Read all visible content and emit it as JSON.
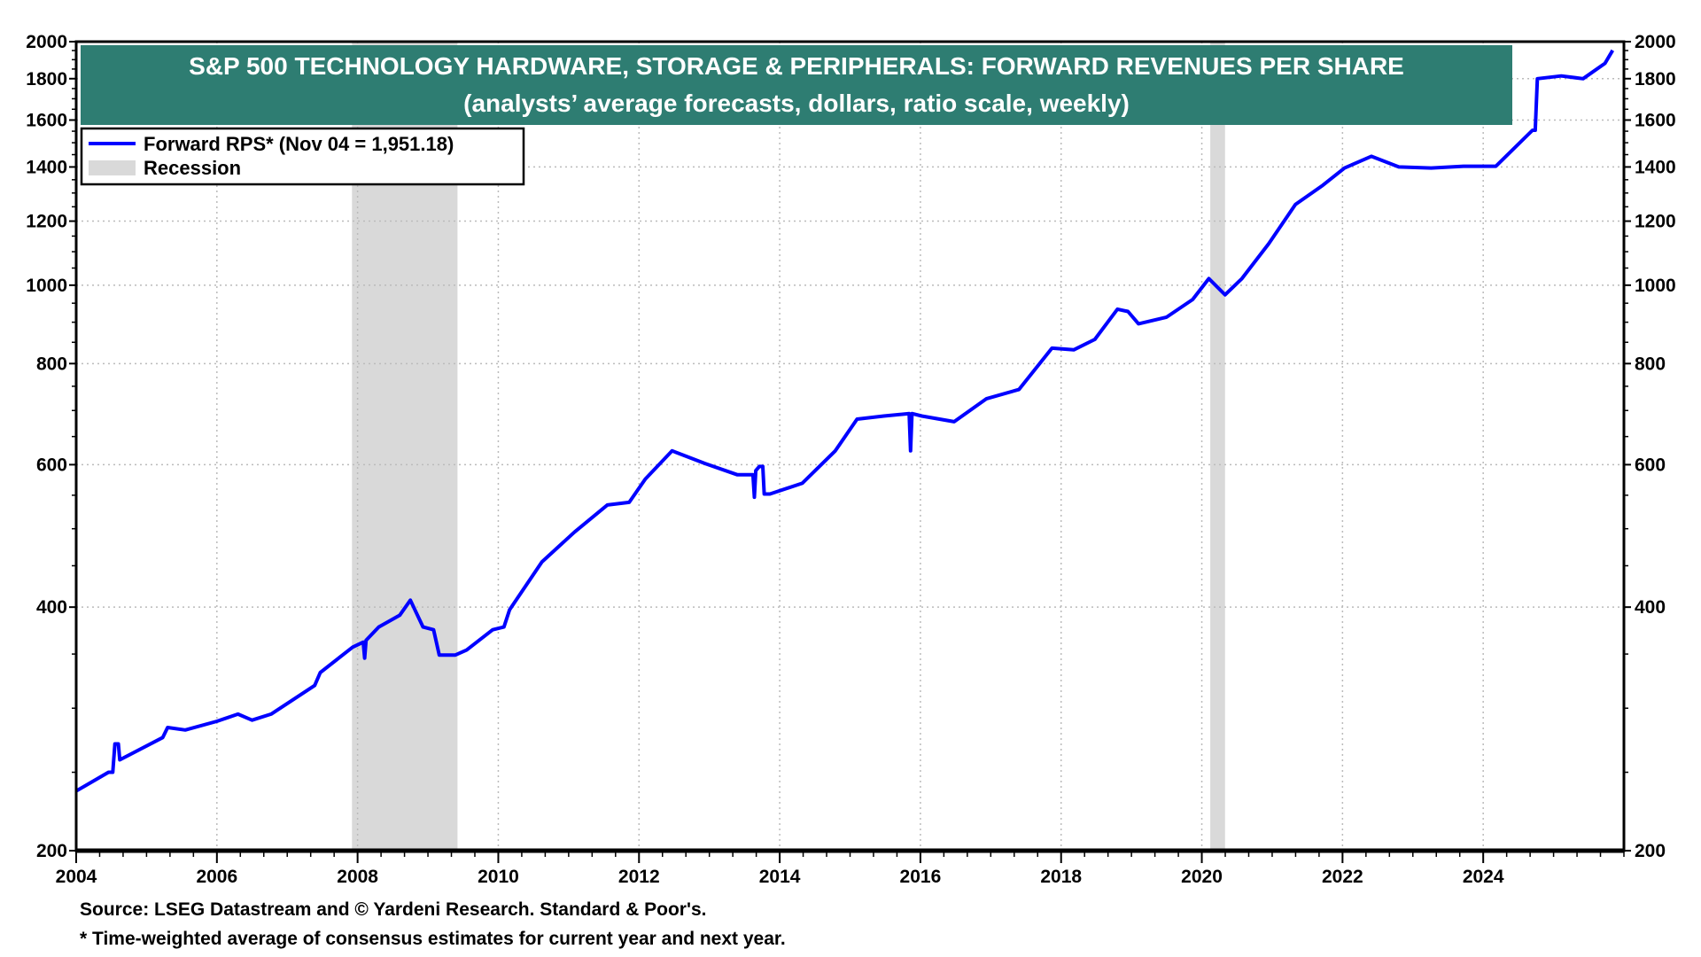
{
  "chart_data": {
    "type": "line",
    "title": "S&P 500 TECHNOLOGY HARDWARE, STORAGE & PERIPHERALS: FORWARD REVENUES PER SHARE",
    "subtitle": "(analysts’ average forecasts, dollars, ratio scale, weekly)",
    "xlabel": "",
    "ylabel": "",
    "xlim": [
      2004,
      2026
    ],
    "ylim": [
      200,
      2000
    ],
    "yscale": "log",
    "grid": true,
    "legend_position": "top-left",
    "x_ticks": [
      "2004",
      "2006",
      "2008",
      "2010",
      "2012",
      "2014",
      "2016",
      "2018",
      "2020",
      "2022",
      "2024"
    ],
    "y_ticks": [
      200,
      400,
      600,
      800,
      1000,
      1200,
      1400,
      1600,
      1800,
      2000
    ],
    "legend": [
      {
        "label": "Forward RPS* (Nov 04 = 1,951.18)",
        "color": "#0000ff",
        "kind": "line"
      },
      {
        "label": "Recession",
        "color": "#d9d9d9",
        "kind": "box"
      }
    ],
    "recessions": [
      [
        2007.92,
        2009.42
      ],
      [
        2020.12,
        2020.33
      ]
    ],
    "series": [
      {
        "name": "Forward RPS",
        "color": "#0000ff",
        "points": [
          [
            2004.0,
            237
          ],
          [
            2004.46,
            250
          ],
          [
            2004.52,
            250
          ],
          [
            2004.55,
            271
          ],
          [
            2004.6,
            271
          ],
          [
            2004.62,
            259
          ],
          [
            2005.23,
            276
          ],
          [
            2005.3,
            284
          ],
          [
            2005.55,
            282
          ],
          [
            2006.0,
            289
          ],
          [
            2006.3,
            295
          ],
          [
            2006.5,
            290
          ],
          [
            2006.77,
            295
          ],
          [
            2007.39,
            320
          ],
          [
            2007.47,
            332
          ],
          [
            2007.93,
            357
          ],
          [
            2008.08,
            362
          ],
          [
            2008.1,
            346
          ],
          [
            2008.12,
            364
          ],
          [
            2008.3,
            378
          ],
          [
            2008.6,
            391
          ],
          [
            2008.75,
            408
          ],
          [
            2008.93,
            378
          ],
          [
            2009.08,
            375
          ],
          [
            2009.16,
            349
          ],
          [
            2009.39,
            349
          ],
          [
            2009.55,
            354
          ],
          [
            2009.92,
            375
          ],
          [
            2010.08,
            378
          ],
          [
            2010.16,
            397
          ],
          [
            2010.62,
            455
          ],
          [
            2011.08,
            495
          ],
          [
            2011.55,
            535
          ],
          [
            2011.86,
            539
          ],
          [
            2012.09,
            576
          ],
          [
            2012.47,
            624
          ],
          [
            2012.94,
            602
          ],
          [
            2013.4,
            583
          ],
          [
            2013.62,
            583
          ],
          [
            2013.64,
            547
          ],
          [
            2013.66,
            590
          ],
          [
            2013.71,
            597
          ],
          [
            2013.76,
            597
          ],
          [
            2013.78,
            552
          ],
          [
            2013.86,
            552
          ],
          [
            2014.32,
            569
          ],
          [
            2014.79,
            624
          ],
          [
            2015.1,
            683
          ],
          [
            2015.48,
            689
          ],
          [
            2015.84,
            694
          ],
          [
            2015.86,
            624
          ],
          [
            2015.88,
            694
          ],
          [
            2016.02,
            689
          ],
          [
            2016.48,
            678
          ],
          [
            2016.94,
            724
          ],
          [
            2017.4,
            743
          ],
          [
            2017.87,
            836
          ],
          [
            2018.18,
            832
          ],
          [
            2018.48,
            857
          ],
          [
            2018.8,
            934
          ],
          [
            2018.95,
            928
          ],
          [
            2019.1,
            896
          ],
          [
            2019.5,
            913
          ],
          [
            2019.87,
            960
          ],
          [
            2020.1,
            1019
          ],
          [
            2020.33,
            973
          ],
          [
            2020.57,
            1019
          ],
          [
            2020.95,
            1125
          ],
          [
            2021.33,
            1258
          ],
          [
            2021.72,
            1329
          ],
          [
            2022.03,
            1396
          ],
          [
            2022.41,
            1443
          ],
          [
            2022.8,
            1400
          ],
          [
            2023.26,
            1396
          ],
          [
            2023.72,
            1403
          ],
          [
            2024.18,
            1403
          ],
          [
            2024.7,
            1554
          ],
          [
            2024.74,
            1554
          ],
          [
            2024.77,
            1800
          ],
          [
            2025.11,
            1814
          ],
          [
            2025.42,
            1800
          ],
          [
            2025.73,
            1880
          ],
          [
            2025.84,
            1951
          ]
        ]
      }
    ]
  },
  "footer": {
    "source": "Source: LSEG Datastream and © Yardeni Research. Standard & Poor's.",
    "note": "* Time-weighted average of consensus estimates for current year and next year."
  }
}
